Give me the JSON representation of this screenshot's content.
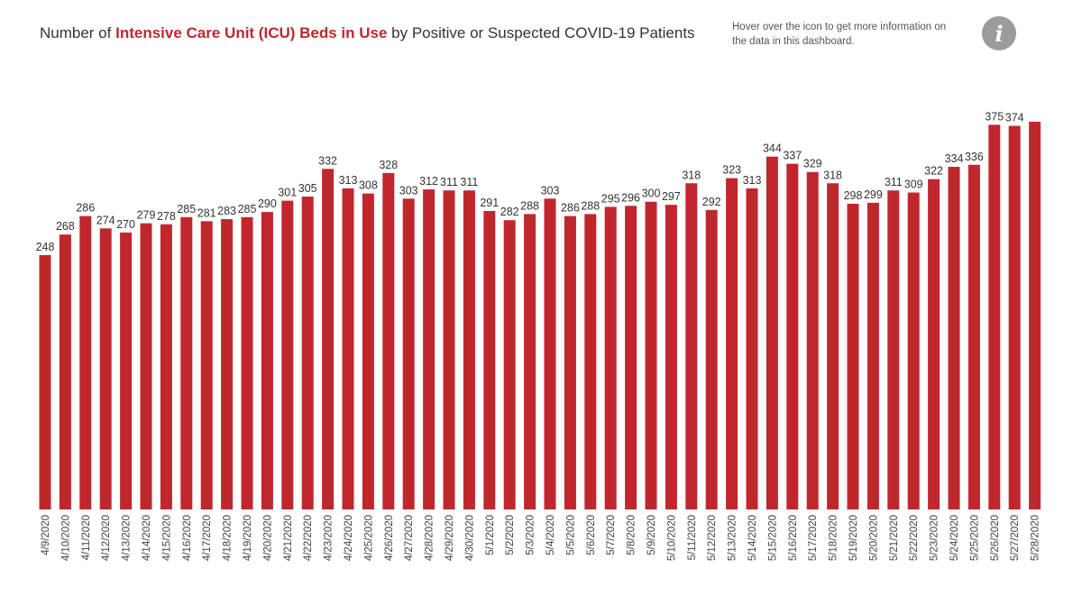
{
  "header": {
    "title_prefix": "Number of ",
    "title_highlight": "Intensive Care Unit (ICU) Beds in Use",
    "title_suffix": " by Positive or Suspected COVID-19 Patients",
    "info_text": "Hover over the icon to get more information on the data in this dashboard.",
    "info_icon": "info-icon"
  },
  "colors": {
    "bar": "#c0272d",
    "highlight": "#c0272d"
  },
  "chart_data": {
    "type": "bar",
    "categories": [
      "4/9/2020",
      "4/10/2020",
      "4/11/2020",
      "4/12/2020",
      "4/13/2020",
      "4/14/2020",
      "4/15/2020",
      "4/16/2020",
      "4/17/2020",
      "4/18/2020",
      "4/19/2020",
      "4/20/2020",
      "4/21/2020",
      "4/22/2020",
      "4/23/2020",
      "4/24/2020",
      "4/25/2020",
      "4/26/2020",
      "4/27/2020",
      "4/28/2020",
      "4/29/2020",
      "4/30/2020",
      "5/1/2020",
      "5/2/2020",
      "5/3/2020",
      "5/4/2020",
      "5/5/2020",
      "5/6/2020",
      "5/7/2020",
      "5/8/2020",
      "5/9/2020",
      "5/10/2020",
      "5/11/2020",
      "5/12/2020",
      "5/13/2020",
      "5/14/2020",
      "5/15/2020",
      "5/16/2020",
      "5/17/2020",
      "5/18/2020",
      "5/19/2020",
      "5/20/2020",
      "5/21/2020",
      "5/22/2020",
      "5/23/2020",
      "5/24/2020",
      "5/25/2020",
      "5/26/2020",
      "5/27/2020",
      "5/28/2020"
    ],
    "values": [
      248,
      268,
      286,
      274,
      270,
      279,
      278,
      285,
      281,
      283,
      285,
      290,
      301,
      305,
      332,
      313,
      308,
      328,
      303,
      312,
      311,
      311,
      291,
      282,
      288,
      303,
      286,
      288,
      295,
      296,
      300,
      297,
      318,
      292,
      323,
      313,
      344,
      337,
      329,
      318,
      298,
      299,
      311,
      309,
      322,
      334,
      336,
      375,
      374,
      378
    ],
    "labels": [
      "248",
      "268",
      "286",
      "274",
      "270",
      "279",
      "278",
      "285",
      "281",
      "283",
      "285",
      "290",
      "301",
      "305",
      "332",
      "313",
      "308",
      "328",
      "303",
      "312",
      "311",
      "311",
      "291",
      "282",
      "288",
      "303",
      "286",
      "288",
      "295",
      "296",
      "300",
      "297",
      "318",
      "292",
      "323",
      "313",
      "344",
      "337",
      "329",
      "318",
      "298",
      "299",
      "311",
      "309",
      "322",
      "334",
      "336",
      "375",
      "374",
      ""
    ],
    "ylim": [
      0,
      378
    ],
    "grid": false,
    "legend": "none"
  }
}
